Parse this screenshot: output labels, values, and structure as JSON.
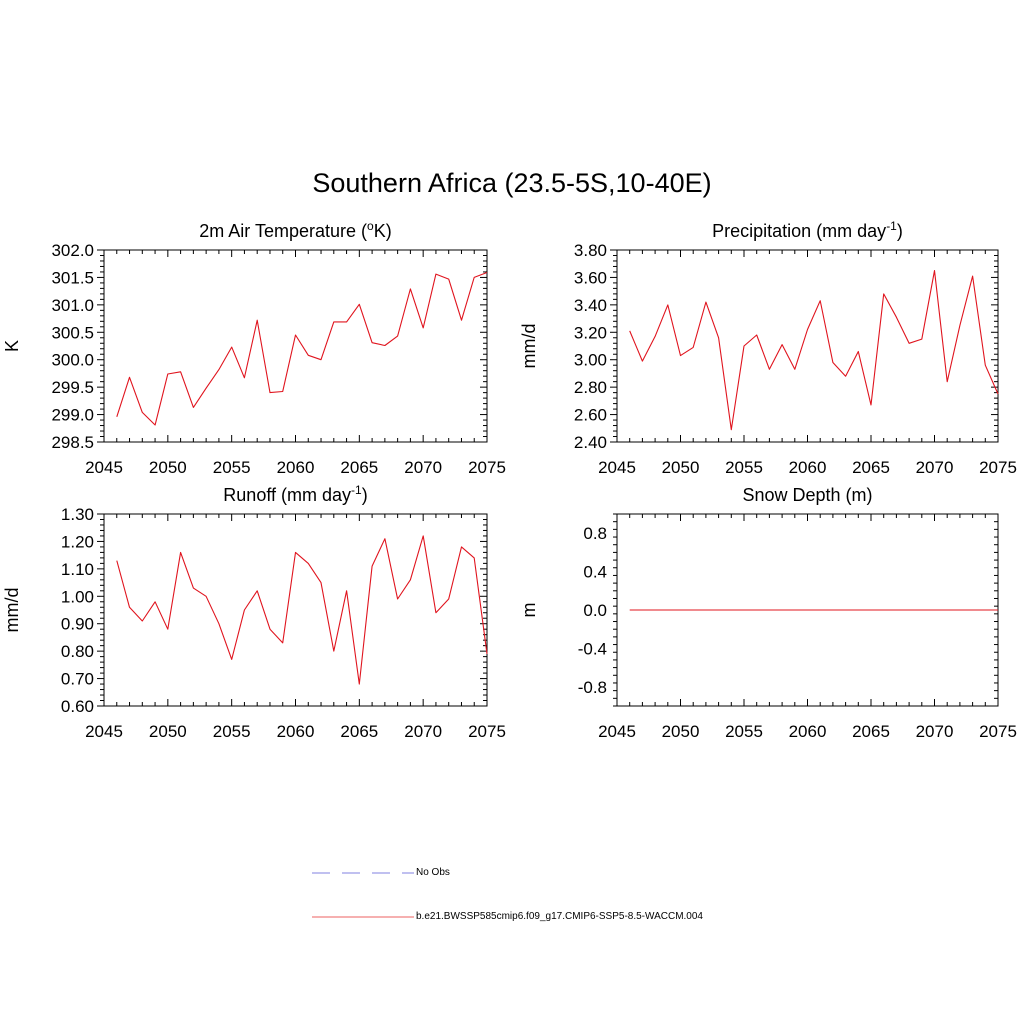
{
  "title": "Southern Africa (23.5-5S,10-40E)",
  "colors": {
    "series": "#e0141e",
    "obs": "#9a9ae6",
    "legend_model": "#f08080"
  },
  "legend": {
    "obs_label": "No Obs",
    "model_label": "b.e21.BWSSP585cmip6.f09_g17.CMIP6-SSP5-8.5-WACCM.004"
  },
  "chart_data": [
    {
      "type": "line",
      "title": "2m Air Temperature (",
      "title_sup": "o",
      "title_suffix": "K)",
      "ylabel": "K",
      "xlim": [
        2045,
        2075
      ],
      "ylim": [
        298.5,
        302.0
      ],
      "x_ticks": [
        "2045",
        "2050",
        "2055",
        "2060",
        "2065",
        "2070",
        "2075"
      ],
      "y_ticks": [
        "298.5",
        "299.0",
        "299.5",
        "300.0",
        "300.5",
        "301.0",
        "301.5",
        "302.0"
      ],
      "x": [
        2046,
        2047,
        2048,
        2049,
        2050,
        2051,
        2052,
        2053,
        2054,
        2055,
        2056,
        2057,
        2058,
        2059,
        2060,
        2061,
        2062,
        2063,
        2064,
        2065,
        2066,
        2067,
        2068,
        2069,
        2070,
        2071,
        2072,
        2073,
        2074,
        2075
      ],
      "values": [
        298.96,
        299.68,
        299.04,
        298.81,
        299.74,
        299.78,
        299.13,
        299.48,
        299.82,
        300.23,
        299.67,
        300.72,
        299.4,
        299.42,
        300.45,
        300.08,
        300.0,
        300.69,
        300.69,
        301.01,
        300.31,
        300.26,
        300.43,
        301.29,
        300.58,
        301.56,
        301.47,
        300.72,
        301.5,
        301.59
      ]
    },
    {
      "type": "line",
      "title": "Precipitation (mm day",
      "title_sup": "-1",
      "title_suffix": ")",
      "ylabel": "mm/d",
      "xlim": [
        2045,
        2075
      ],
      "ylim": [
        2.4,
        3.8
      ],
      "x_ticks": [
        "2045",
        "2050",
        "2055",
        "2060",
        "2065",
        "2070",
        "2075"
      ],
      "y_ticks": [
        "2.40",
        "2.60",
        "2.80",
        "3.00",
        "3.20",
        "3.40",
        "3.60",
        "3.80"
      ],
      "x": [
        2046,
        2047,
        2048,
        2049,
        2050,
        2051,
        2052,
        2053,
        2054,
        2055,
        2056,
        2057,
        2058,
        2059,
        2060,
        2061,
        2062,
        2063,
        2064,
        2065,
        2066,
        2067,
        2068,
        2069,
        2070,
        2071,
        2072,
        2073,
        2074,
        2075
      ],
      "values": [
        3.21,
        2.99,
        3.17,
        3.4,
        3.03,
        3.09,
        3.42,
        3.16,
        2.49,
        3.1,
        3.18,
        2.93,
        3.11,
        2.93,
        3.22,
        3.43,
        2.98,
        2.88,
        3.06,
        2.67,
        3.48,
        3.31,
        3.12,
        3.15,
        3.65,
        2.84,
        3.25,
        3.61,
        2.96,
        2.75
      ]
    },
    {
      "type": "line",
      "title": "Runoff (mm day",
      "title_sup": "-1",
      "title_suffix": ")",
      "ylabel": "mm/d",
      "xlim": [
        2045,
        2075
      ],
      "ylim": [
        0.6,
        1.3
      ],
      "x_ticks": [
        "2045",
        "2050",
        "2055",
        "2060",
        "2065",
        "2070",
        "2075"
      ],
      "y_ticks": [
        "0.60",
        "0.70",
        "0.80",
        "0.90",
        "1.00",
        "1.10",
        "1.20",
        "1.30"
      ],
      "x": [
        2046,
        2047,
        2048,
        2049,
        2050,
        2051,
        2052,
        2053,
        2054,
        2055,
        2056,
        2057,
        2058,
        2059,
        2060,
        2061,
        2062,
        2063,
        2064,
        2065,
        2066,
        2067,
        2068,
        2069,
        2070,
        2071,
        2072,
        2073,
        2074,
        2075
      ],
      "values": [
        1.13,
        0.96,
        0.91,
        0.98,
        0.88,
        1.16,
        1.03,
        1.0,
        0.9,
        0.77,
        0.95,
        1.02,
        0.88,
        0.83,
        1.16,
        1.12,
        1.05,
        0.8,
        1.02,
        0.68,
        1.11,
        1.21,
        0.99,
        1.06,
        1.22,
        0.94,
        0.99,
        1.18,
        1.14,
        0.79
      ]
    },
    {
      "type": "line",
      "title": "Snow Depth (m)",
      "title_sup": "",
      "title_suffix": "",
      "ylabel": "m",
      "xlim": [
        2045,
        2075
      ],
      "ylim": [
        -1.0,
        1.0
      ],
      "x_ticks": [
        "2045",
        "2050",
        "2055",
        "2060",
        "2065",
        "2070",
        "2075"
      ],
      "y_ticks": [
        "-0.8",
        "-0.4",
        "0.0",
        "0.4",
        "0.8"
      ],
      "y_tick_values": [
        -0.8,
        -0.4,
        0.0,
        0.4,
        0.8
      ],
      "x": [
        2046,
        2075
      ],
      "values": [
        0.0,
        0.0
      ]
    }
  ]
}
